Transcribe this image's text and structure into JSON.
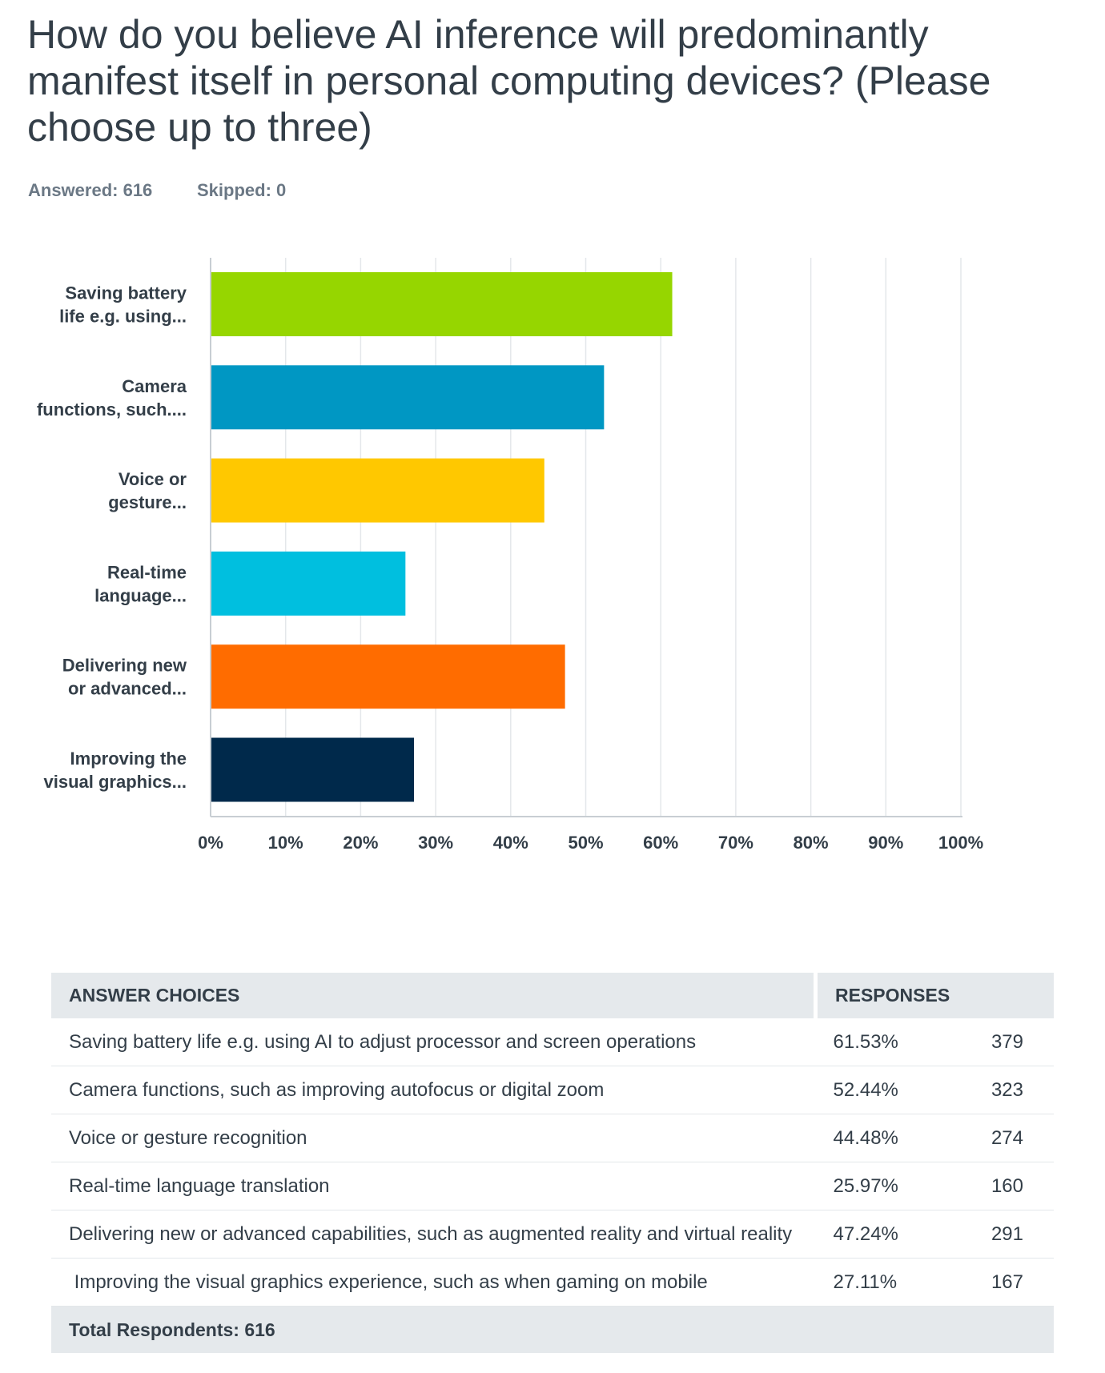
{
  "question": {
    "title": "How do you believe AI inference will predominantly manifest itself in personal computing devices? (Please choose up to three)",
    "answered": "Answered: 616",
    "skipped": "Skipped: 0"
  },
  "chart_data": {
    "type": "bar",
    "orientation": "horizontal",
    "categories": [
      "Saving battery life e.g. using...",
      "Camera functions, such....",
      "Voice or gesture...",
      "Real-time language...",
      "Delivering new or advanced...",
      "Improving the visual graphics..."
    ],
    "category_lines": [
      [
        "Saving battery",
        "life e.g. using..."
      ],
      [
        "Camera",
        "functions, such...."
      ],
      [
        "Voice or",
        "gesture..."
      ],
      [
        "Real-time",
        "language..."
      ],
      [
        "Delivering new",
        "or advanced..."
      ],
      [
        "Improving the",
        "visual graphics..."
      ]
    ],
    "values": [
      61.53,
      52.44,
      44.48,
      25.97,
      47.24,
      27.11
    ],
    "colors": [
      "#96d600",
      "#0097c3",
      "#ffc800",
      "#00bfdf",
      "#ff6c00",
      "#00294b"
    ],
    "x_ticks": [
      "0%",
      "10%",
      "20%",
      "30%",
      "40%",
      "50%",
      "60%",
      "70%",
      "80%",
      "90%",
      "100%"
    ],
    "xlim": [
      0,
      100
    ],
    "grid": true,
    "gridline_color": "#e4e7ea",
    "axis_color": "#c8ced3"
  },
  "table": {
    "headers": {
      "choices": "ANSWER CHOICES",
      "responses": "RESPONSES"
    },
    "rows": [
      {
        "choice": "Saving battery life e.g. using AI to adjust processor and screen operations",
        "percent": "61.53%",
        "count": "379"
      },
      {
        "choice": "Camera functions, such as improving autofocus or digital zoom",
        "percent": "52.44%",
        "count": "323"
      },
      {
        "choice": "Voice or gesture recognition",
        "percent": "44.48%",
        "count": "274"
      },
      {
        "choice": "Real-time language translation",
        "percent": "25.97%",
        "count": "160"
      },
      {
        "choice": "Delivering new or advanced capabilities, such as augmented reality and virtual reality",
        "percent": "47.24%",
        "count": "291"
      },
      {
        "choice": " Improving the visual graphics experience, such as when gaming on mobile",
        "percent": "27.11%",
        "count": "167"
      }
    ],
    "footer": "Total Respondents: 616"
  }
}
